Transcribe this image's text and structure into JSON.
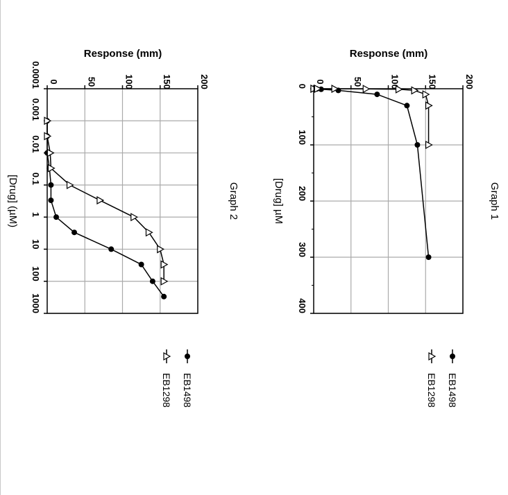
{
  "chart_data": [
    {
      "type": "line",
      "title": "Graph 1",
      "xlabel": "[Drug] µM",
      "ylabel": "Response (mm)",
      "xlim": [
        0,
        400
      ],
      "ylim": [
        0,
        200
      ],
      "xticks": [
        "0",
        "100",
        "200",
        "300",
        "400"
      ],
      "yticks": [
        "0",
        "50",
        "100",
        "150",
        "200"
      ],
      "grid": true,
      "legend": "right",
      "series": [
        {
          "name": "EB1498",
          "marker": "filled-circle",
          "color": "#000000",
          "points": [
            [
              0.0001,
              0
            ],
            [
              0.001,
              0
            ],
            [
              0.01,
              0
            ],
            [
              0.03,
              1
            ],
            [
              0.1,
              3
            ],
            [
              0.3,
              4
            ],
            [
              1,
              10
            ],
            [
              3,
              33
            ],
            [
              10,
              85
            ],
            [
              30,
              125
            ],
            [
              100,
              139
            ],
            [
              300,
              154
            ]
          ]
        },
        {
          "name": "EB1298",
          "marker": "open-triangle",
          "color": "#000000",
          "points": [
            [
              0.0001,
              0
            ],
            [
              0.001,
              0
            ],
            [
              0.01,
              4
            ],
            [
              0.03,
              5
            ],
            [
              0.1,
              28
            ],
            [
              0.3,
              70
            ],
            [
              1,
              114
            ],
            [
              3,
              135
            ],
            [
              10,
              150
            ],
            [
              30,
              154
            ],
            [
              100,
              154
            ]
          ]
        }
      ]
    },
    {
      "type": "line",
      "title": "Graph 2",
      "xlabel": "[Drug] (µM)",
      "ylabel": "Response (mm)",
      "xscale": "log",
      "xlim": [
        0.0001,
        1000
      ],
      "ylim": [
        0,
        200
      ],
      "xticks": [
        "0.0001",
        "0.001",
        "0.01",
        "0.1",
        "1",
        "10",
        "100",
        "1000"
      ],
      "yticks": [
        "0",
        "50",
        "100",
        "150",
        "200"
      ],
      "grid": true,
      "legend": "right",
      "series": [
        {
          "name": "EB1498",
          "marker": "filled-circle",
          "color": "#000000",
          "points": [
            [
              0.001,
              0
            ],
            [
              0.003,
              0
            ],
            [
              0.01,
              0
            ],
            [
              0.03,
              3
            ],
            [
              0.1,
              5
            ],
            [
              0.3,
              5
            ],
            [
              1,
              12
            ],
            [
              3,
              36
            ],
            [
              10,
              85
            ],
            [
              30,
              125
            ],
            [
              100,
              140
            ],
            [
              300,
              155
            ]
          ]
        },
        {
          "name": "EB1298",
          "marker": "open-triangle",
          "color": "#000000",
          "points": [
            [
              0.001,
              0
            ],
            [
              0.003,
              0
            ],
            [
              0.01,
              4
            ],
            [
              0.03,
              5
            ],
            [
              0.1,
              30
            ],
            [
              0.3,
              70
            ],
            [
              1,
              115
            ],
            [
              3,
              135
            ],
            [
              10,
              150
            ],
            [
              30,
              155
            ],
            [
              100,
              155
            ]
          ]
        }
      ]
    }
  ]
}
